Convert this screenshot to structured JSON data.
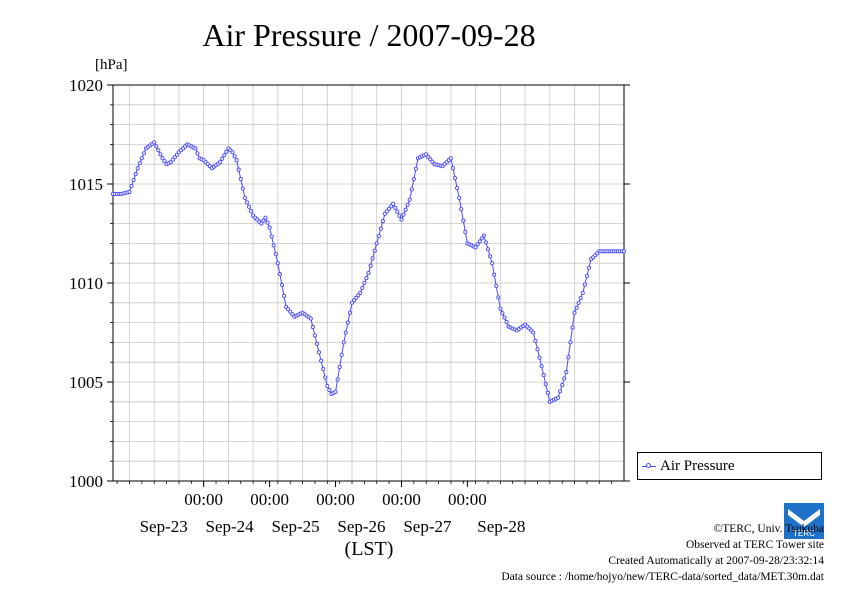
{
  "colors": {
    "series": "#4a4aff",
    "grid": "#c8c8c8",
    "logo": "#1e73c8"
  },
  "chart_data": {
    "type": "line",
    "title": "Air Pressure / 2007-09-28",
    "ylabel": "[hPa]",
    "xlabel": "(LST)",
    "ylim": [
      1000,
      1020
    ],
    "yticks": [
      1000,
      1005,
      1010,
      1015,
      1020
    ],
    "x_range_hours": [
      -44,
      152
    ],
    "day_ticks": [
      {
        "hour": 0,
        "time": "00:00",
        "date": "Sep-23"
      },
      {
        "hour": 32,
        "time": "00:00",
        "date": "Sep-24"
      },
      {
        "hour": 64,
        "time": "00:00",
        "date": "Sep-25"
      },
      {
        "hour": 96,
        "time": "00:00",
        "date": "Sep-26"
      },
      {
        "hour": 128,
        "time": "00:00",
        "date": "Sep-27"
      }
    ],
    "grid": true,
    "legend_position": "right",
    "series": [
      {
        "name": "Air Pressure",
        "hours": [
          -44,
          -40,
          -36,
          -32,
          -28,
          -24,
          -20,
          -18,
          -16,
          -12,
          -8,
          -4,
          -2,
          0,
          4,
          8,
          12,
          14,
          16,
          20,
          24,
          28,
          30,
          32,
          36,
          40,
          44,
          48,
          52,
          56,
          60,
          62,
          64,
          68,
          72,
          76,
          80,
          84,
          88,
          92,
          96,
          100,
          104,
          108,
          112,
          116,
          120,
          124,
          128,
          132,
          136,
          140,
          144,
          148,
          152
        ],
        "values": [
          1014.5,
          1014.5,
          1014.6,
          1015.8,
          1016.8,
          1017.1,
          1016.3,
          1016.0,
          1016.1,
          1016.6,
          1017.0,
          1016.8,
          1016.3,
          1016.2,
          1015.8,
          1016.1,
          1016.8,
          1016.6,
          1016.2,
          1014.3,
          1013.4,
          1013.0,
          1013.3,
          1012.8,
          1011.0,
          1008.8,
          1008.3,
          1008.5,
          1008.2,
          1006.5,
          1004.8,
          1004.4,
          1004.5,
          1007.0,
          1009.0,
          1009.5,
          1010.5,
          1012.0,
          1013.5,
          1014.0,
          1013.2,
          1014.2,
          1016.3,
          1016.5,
          1016.0,
          1015.9,
          1016.3,
          1014.3,
          1012.0,
          1011.8,
          1012.4,
          1011.0,
          1008.7,
          1007.8,
          1007.6
        ]
      }
    ],
    "series_2": [
      {
        "name": "Air Pressure",
        "hours": [
          152,
          156,
          160,
          164,
          168,
          172,
          176,
          180,
          184,
          188,
          192,
          196,
          200,
          204
        ],
        "values": [
          1007.6,
          1007.9,
          1007.5,
          1005.8,
          1004.0,
          1004.2,
          1005.5,
          1008.5,
          1009.5,
          1011.2,
          1011.6,
          1011.6,
          1011.6,
          1011.6
        ]
      }
    ]
  },
  "legend": {
    "label": "Air Pressure"
  },
  "credits": {
    "line1": "©TERC, Univ. Tsukuba",
    "line2": "Observed at TERC Tower site",
    "line3": "Created Automatically at 2007-09-28/23:32:14",
    "line4": "Data source : /home/hojyo/new/TERC-data/sorted_data/MET.30m.dat"
  },
  "logo": {
    "text": "TERC"
  }
}
